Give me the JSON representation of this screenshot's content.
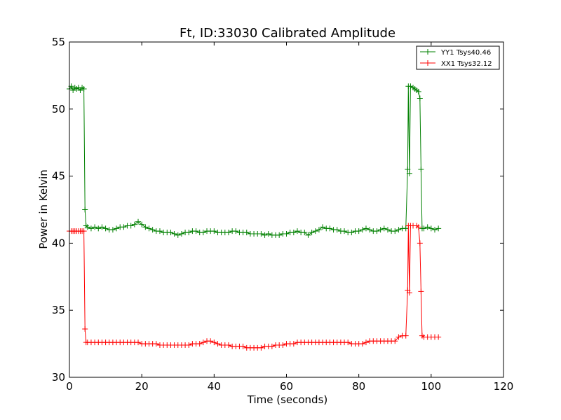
{
  "chart_data": {
    "type": "line",
    "title": "Ft, ID:33030 Calibrated Amplitude",
    "xlabel": "Time (seconds)",
    "ylabel": "Power in Kelvin",
    "xlim": [
      0,
      120
    ],
    "ylim": [
      30,
      55
    ],
    "xticks": [
      0,
      20,
      40,
      60,
      80,
      100,
      120
    ],
    "yticks": [
      30,
      35,
      40,
      45,
      50,
      55
    ],
    "grid": false,
    "legend_position": "top-right",
    "marker": "plus",
    "series": [
      {
        "name": "YY1 Tsys40.46",
        "color": "#008000",
        "points": [
          [
            0,
            51.5
          ],
          [
            0.5,
            51.7
          ],
          [
            1,
            51.4
          ],
          [
            1.5,
            51.6
          ],
          [
            2,
            51.5
          ],
          [
            2.5,
            51.6
          ],
          [
            3,
            51.4
          ],
          [
            3.5,
            51.6
          ],
          [
            4,
            51.5
          ],
          [
            4.3,
            42.5
          ],
          [
            4.6,
            41.3
          ],
          [
            5,
            41.2
          ],
          [
            6,
            41.1
          ],
          [
            7,
            41.2
          ],
          [
            8,
            41.1
          ],
          [
            9,
            41.2
          ],
          [
            10,
            41.1
          ],
          [
            11,
            41.0
          ],
          [
            12,
            41.0
          ],
          [
            13,
            41.1
          ],
          [
            14,
            41.2
          ],
          [
            15,
            41.2
          ],
          [
            16,
            41.3
          ],
          [
            17,
            41.3
          ],
          [
            18,
            41.4
          ],
          [
            19,
            41.6
          ],
          [
            20,
            41.4
          ],
          [
            21,
            41.2
          ],
          [
            22,
            41.1
          ],
          [
            23,
            41.0
          ],
          [
            24,
            40.9
          ],
          [
            25,
            40.9
          ],
          [
            26,
            40.8
          ],
          [
            27,
            40.8
          ],
          [
            28,
            40.8
          ],
          [
            29,
            40.7
          ],
          [
            30,
            40.6
          ],
          [
            31,
            40.7
          ],
          [
            32,
            40.8
          ],
          [
            33,
            40.8
          ],
          [
            34,
            40.9
          ],
          [
            35,
            40.9
          ],
          [
            36,
            40.8
          ],
          [
            37,
            40.8
          ],
          [
            38,
            40.9
          ],
          [
            39,
            40.9
          ],
          [
            40,
            40.9
          ],
          [
            41,
            40.8
          ],
          [
            42,
            40.8
          ],
          [
            43,
            40.8
          ],
          [
            44,
            40.8
          ],
          [
            45,
            40.9
          ],
          [
            46,
            40.9
          ],
          [
            47,
            40.8
          ],
          [
            48,
            40.8
          ],
          [
            49,
            40.8
          ],
          [
            50,
            40.7
          ],
          [
            51,
            40.7
          ],
          [
            52,
            40.7
          ],
          [
            53,
            40.7
          ],
          [
            54,
            40.6
          ],
          [
            55,
            40.7
          ],
          [
            56,
            40.6
          ],
          [
            57,
            40.6
          ],
          [
            58,
            40.6
          ],
          [
            59,
            40.7
          ],
          [
            60,
            40.7
          ],
          [
            61,
            40.8
          ],
          [
            62,
            40.8
          ],
          [
            63,
            40.9
          ],
          [
            64,
            40.8
          ],
          [
            65,
            40.8
          ],
          [
            66,
            40.6
          ],
          [
            67,
            40.8
          ],
          [
            68,
            40.9
          ],
          [
            69,
            41.0
          ],
          [
            70,
            41.2
          ],
          [
            71,
            41.1
          ],
          [
            72,
            41.1
          ],
          [
            73,
            41.0
          ],
          [
            74,
            41.0
          ],
          [
            75,
            40.9
          ],
          [
            76,
            40.9
          ],
          [
            77,
            40.8
          ],
          [
            78,
            40.8
          ],
          [
            79,
            40.9
          ],
          [
            80,
            40.9
          ],
          [
            81,
            41.0
          ],
          [
            82,
            41.1
          ],
          [
            83,
            41.0
          ],
          [
            84,
            40.9
          ],
          [
            85,
            40.9
          ],
          [
            86,
            41.0
          ],
          [
            87,
            41.1
          ],
          [
            88,
            41.0
          ],
          [
            89,
            40.9
          ],
          [
            90,
            40.9
          ],
          [
            91,
            41.0
          ],
          [
            92,
            41.1
          ],
          [
            93,
            41.1
          ],
          [
            93.5,
            45.5
          ],
          [
            93.7,
            51.7
          ],
          [
            94,
            45.2
          ],
          [
            94.3,
            51.7
          ],
          [
            95,
            51.6
          ],
          [
            95.5,
            51.5
          ],
          [
            96,
            51.4
          ],
          [
            96.5,
            51.3
          ],
          [
            96.9,
            50.8
          ],
          [
            97.2,
            45.5
          ],
          [
            97.5,
            41.1
          ],
          [
            98,
            41.1
          ],
          [
            99,
            41.2
          ],
          [
            100,
            41.1
          ],
          [
            101,
            41.0
          ],
          [
            102,
            41.1
          ]
        ]
      },
      {
        "name": "XX1 Tsys32.12",
        "color": "#ff0000",
        "points": [
          [
            0,
            40.9
          ],
          [
            0.5,
            40.9
          ],
          [
            1,
            40.9
          ],
          [
            1.5,
            40.9
          ],
          [
            2,
            40.9
          ],
          [
            2.5,
            40.9
          ],
          [
            3,
            40.9
          ],
          [
            3.5,
            40.9
          ],
          [
            4,
            40.9
          ],
          [
            4.3,
            33.6
          ],
          [
            4.6,
            32.6
          ],
          [
            5,
            32.6
          ],
          [
            6,
            32.6
          ],
          [
            7,
            32.6
          ],
          [
            8,
            32.6
          ],
          [
            9,
            32.6
          ],
          [
            10,
            32.6
          ],
          [
            11,
            32.6
          ],
          [
            12,
            32.6
          ],
          [
            13,
            32.6
          ],
          [
            14,
            32.6
          ],
          [
            15,
            32.6
          ],
          [
            16,
            32.6
          ],
          [
            17,
            32.6
          ],
          [
            18,
            32.6
          ],
          [
            19,
            32.6
          ],
          [
            20,
            32.5
          ],
          [
            21,
            32.5
          ],
          [
            22,
            32.5
          ],
          [
            23,
            32.5
          ],
          [
            24,
            32.5
          ],
          [
            25,
            32.4
          ],
          [
            26,
            32.4
          ],
          [
            27,
            32.4
          ],
          [
            28,
            32.4
          ],
          [
            29,
            32.4
          ],
          [
            30,
            32.4
          ],
          [
            31,
            32.4
          ],
          [
            32,
            32.4
          ],
          [
            33,
            32.4
          ],
          [
            34,
            32.5
          ],
          [
            35,
            32.5
          ],
          [
            36,
            32.5
          ],
          [
            37,
            32.6
          ],
          [
            38,
            32.7
          ],
          [
            39,
            32.7
          ],
          [
            40,
            32.6
          ],
          [
            41,
            32.5
          ],
          [
            42,
            32.4
          ],
          [
            43,
            32.4
          ],
          [
            44,
            32.4
          ],
          [
            45,
            32.3
          ],
          [
            46,
            32.3
          ],
          [
            47,
            32.3
          ],
          [
            48,
            32.3
          ],
          [
            49,
            32.2
          ],
          [
            50,
            32.2
          ],
          [
            51,
            32.2
          ],
          [
            52,
            32.2
          ],
          [
            53,
            32.2
          ],
          [
            54,
            32.3
          ],
          [
            55,
            32.3
          ],
          [
            56,
            32.3
          ],
          [
            57,
            32.4
          ],
          [
            58,
            32.4
          ],
          [
            59,
            32.4
          ],
          [
            60,
            32.5
          ],
          [
            61,
            32.5
          ],
          [
            62,
            32.5
          ],
          [
            63,
            32.6
          ],
          [
            64,
            32.6
          ],
          [
            65,
            32.6
          ],
          [
            66,
            32.6
          ],
          [
            67,
            32.6
          ],
          [
            68,
            32.6
          ],
          [
            69,
            32.6
          ],
          [
            70,
            32.6
          ],
          [
            71,
            32.6
          ],
          [
            72,
            32.6
          ],
          [
            73,
            32.6
          ],
          [
            74,
            32.6
          ],
          [
            75,
            32.6
          ],
          [
            76,
            32.6
          ],
          [
            77,
            32.6
          ],
          [
            78,
            32.5
          ],
          [
            79,
            32.5
          ],
          [
            80,
            32.5
          ],
          [
            81,
            32.5
          ],
          [
            82,
            32.6
          ],
          [
            83,
            32.7
          ],
          [
            84,
            32.7
          ],
          [
            85,
            32.7
          ],
          [
            86,
            32.7
          ],
          [
            87,
            32.7
          ],
          [
            88,
            32.7
          ],
          [
            89,
            32.7
          ],
          [
            90,
            32.7
          ],
          [
            91,
            33.0
          ],
          [
            92,
            33.1
          ],
          [
            93,
            33.1
          ],
          [
            93.5,
            36.5
          ],
          [
            93.7,
            41.3
          ],
          [
            94,
            36.3
          ],
          [
            94.3,
            41.3
          ],
          [
            95,
            41.3
          ],
          [
            96,
            41.3
          ],
          [
            96.5,
            41.2
          ],
          [
            96.9,
            40.0
          ],
          [
            97.2,
            36.4
          ],
          [
            97.5,
            33.1
          ],
          [
            98,
            33.0
          ],
          [
            99,
            33.0
          ],
          [
            100,
            33.0
          ],
          [
            101,
            33.0
          ],
          [
            102,
            33.0
          ]
        ]
      }
    ]
  }
}
